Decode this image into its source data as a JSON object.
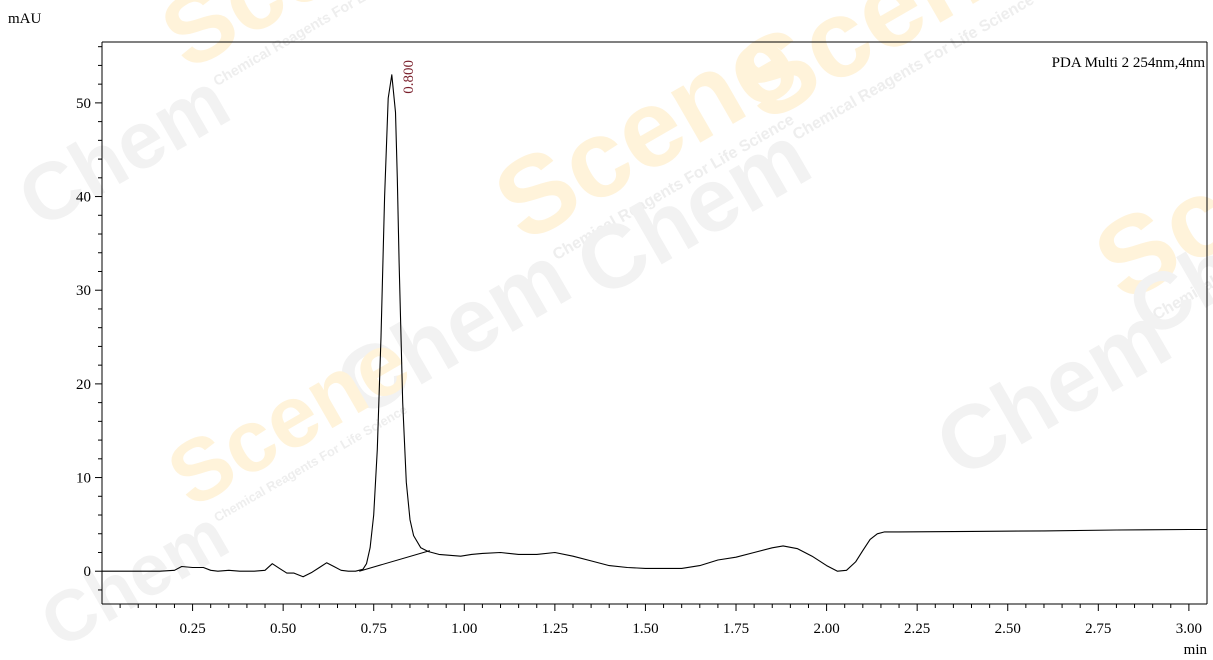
{
  "chart_data": {
    "type": "line",
    "ylabel": "mAU",
    "xlabel": "min",
    "legend": "PDA Multi 2 254nm,4nm",
    "legend_placement": "top-right",
    "xlim": [
      0.0,
      3.05
    ],
    "ylim": [
      -3.5,
      56.5
    ],
    "x_ticks": [
      0.25,
      0.5,
      0.75,
      1.0,
      1.25,
      1.5,
      1.75,
      2.0,
      2.25,
      2.5,
      2.75,
      3.0
    ],
    "x_tick_labels": [
      "0.25",
      "0.50",
      "0.75",
      "1.00",
      "1.25",
      "1.50",
      "1.75",
      "2.00",
      "2.25",
      "2.50",
      "2.75",
      "3.00"
    ],
    "y_ticks": [
      0,
      10,
      20,
      30,
      40,
      50
    ],
    "y_tick_labels": [
      "0",
      "10",
      "20",
      "30",
      "40",
      "50"
    ],
    "grid": false,
    "peak_labels": [
      {
        "x": 0.8,
        "y": 53.0,
        "label": "0.800",
        "color": "#7a1f2b"
      }
    ],
    "baseline_segment": {
      "x": [
        0.71,
        0.905
      ],
      "y": [
        0.0,
        2.2
      ]
    },
    "series": [
      {
        "color": "#000000",
        "x": [
          0.0,
          0.1,
          0.16,
          0.2,
          0.22,
          0.25,
          0.28,
          0.3,
          0.32,
          0.35,
          0.38,
          0.4,
          0.42,
          0.45,
          0.47,
          0.49,
          0.51,
          0.53,
          0.555,
          0.58,
          0.6,
          0.62,
          0.64,
          0.66,
          0.68,
          0.7,
          0.72,
          0.73,
          0.74,
          0.75,
          0.76,
          0.77,
          0.78,
          0.79,
          0.8,
          0.81,
          0.815,
          0.82,
          0.83,
          0.84,
          0.85,
          0.86,
          0.88,
          0.9,
          0.93,
          0.96,
          0.99,
          1.02,
          1.05,
          1.1,
          1.15,
          1.2,
          1.25,
          1.3,
          1.35,
          1.4,
          1.45,
          1.5,
          1.55,
          1.6,
          1.65,
          1.7,
          1.75,
          1.8,
          1.85,
          1.88,
          1.92,
          1.96,
          2.0,
          2.03,
          2.055,
          2.08,
          2.1,
          2.12,
          2.14,
          2.16,
          2.2,
          2.4,
          2.6,
          2.8,
          3.0,
          3.05
        ],
        "y": [
          0.0,
          0.0,
          0.0,
          0.1,
          0.5,
          0.4,
          0.4,
          0.1,
          0.0,
          0.1,
          0.0,
          0.0,
          0.0,
          0.1,
          0.8,
          0.3,
          -0.2,
          -0.2,
          -0.6,
          -0.1,
          0.4,
          0.9,
          0.5,
          0.1,
          0.0,
          0.0,
          0.2,
          0.8,
          2.5,
          6.0,
          13.0,
          25.0,
          40.0,
          50.5,
          53.0,
          49.0,
          42.0,
          33.0,
          18.0,
          9.5,
          5.5,
          3.8,
          2.5,
          2.1,
          1.8,
          1.7,
          1.6,
          1.8,
          1.9,
          2.0,
          1.8,
          1.8,
          2.0,
          1.6,
          1.1,
          0.6,
          0.4,
          0.3,
          0.3,
          0.3,
          0.6,
          1.2,
          1.5,
          2.0,
          2.5,
          2.7,
          2.4,
          1.6,
          0.6,
          0.0,
          0.1,
          1.0,
          2.2,
          3.4,
          4.0,
          4.2,
          4.2,
          4.25,
          4.3,
          4.4,
          4.45,
          4.45
        ]
      }
    ]
  },
  "watermark": {
    "main_text": "Chem",
    "accent_text": "Scene",
    "tagline": "Chemical Reagents For Life Science",
    "main_color": "#f2f2f2",
    "accent_color": "#fff3da",
    "tagline_color": "#eeeeee"
  }
}
